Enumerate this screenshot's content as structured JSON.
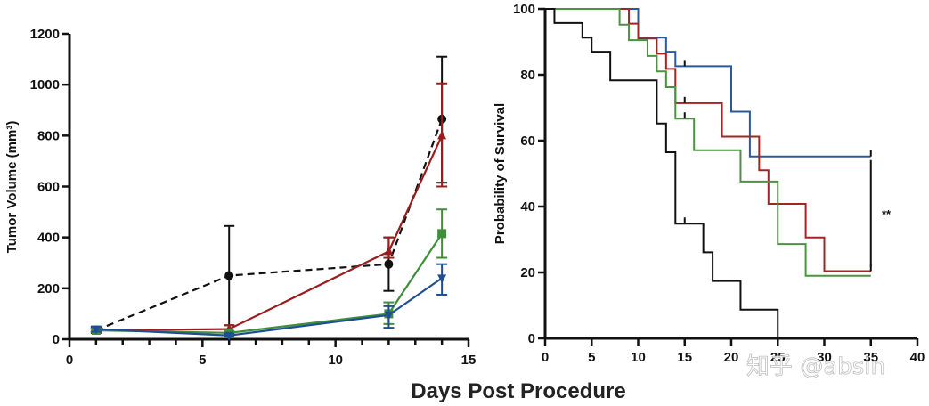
{
  "shared_xlabel": "Days Post Procedure",
  "watermark": "知乎 @absin",
  "chart_data": [
    {
      "type": "line",
      "title": "",
      "xlabel": "",
      "ylabel": "Tumor Volume (mm³)",
      "xlim": [
        0,
        15
      ],
      "ylim": [
        0,
        1200
      ],
      "xticks": [
        0,
        5,
        10,
        15
      ],
      "xminor_step": 1,
      "yticks": [
        0,
        200,
        400,
        600,
        800,
        1000,
        1200
      ],
      "grid": false,
      "legend": null,
      "x": [
        1,
        6,
        12,
        14
      ],
      "series": [
        {
          "name": "black",
          "color": "#111111",
          "dashed": true,
          "marker": "circle",
          "values": [
            35,
            250,
            295,
            865
          ],
          "err_low": [
            25,
            55,
            190,
            615
          ],
          "err_high": [
            45,
            445,
            400,
            1110
          ]
        },
        {
          "name": "red",
          "color": "#9b1c1c",
          "dashed": false,
          "marker": "triangle-up",
          "values": [
            35,
            40,
            345,
            800
          ],
          "err_low": [
            30,
            30,
            320,
            600
          ],
          "err_high": [
            40,
            55,
            400,
            1005
          ]
        },
        {
          "name": "green",
          "color": "#3f8f3a",
          "dashed": false,
          "marker": "square",
          "values": [
            35,
            25,
            100,
            415
          ],
          "err_low": [
            28,
            18,
            60,
            320
          ],
          "err_high": [
            42,
            32,
            145,
            510
          ]
        },
        {
          "name": "blue",
          "color": "#1f4f93",
          "dashed": false,
          "marker": "triangle-down",
          "values": [
            40,
            15,
            95,
            240
          ],
          "err_low": [
            30,
            10,
            45,
            175
          ],
          "err_high": [
            50,
            22,
            130,
            295
          ]
        }
      ]
    },
    {
      "type": "line",
      "subtype": "kaplan-meier",
      "title": "",
      "xlabel": "",
      "ylabel": "Probability of Survival",
      "xlim": [
        0,
        40
      ],
      "ylim": [
        0,
        100
      ],
      "xticks": [
        0,
        5,
        10,
        15,
        20,
        25,
        30,
        35,
        40
      ],
      "yticks": [
        0,
        20,
        40,
        60,
        80,
        100
      ],
      "grid": false,
      "legend": null,
      "annotation": {
        "text": "**",
        "between": [
          "blue",
          "red/green"
        ],
        "at_x": 35
      },
      "series": [
        {
          "name": "blue",
          "color": "#2a5a9e",
          "steps": [
            [
              0,
              100
            ],
            [
              10,
              91.3
            ],
            [
              13,
              87
            ],
            [
              14,
              82.6
            ],
            [
              20,
              68.8
            ],
            [
              22,
              55.2
            ],
            [
              35,
              55.2
            ]
          ],
          "censor": [
            [
              15,
              82.6
            ],
            [
              35,
              55.2
            ]
          ]
        },
        {
          "name": "red",
          "color": "#a32424",
          "steps": [
            [
              0,
              100
            ],
            [
              9,
              95.5
            ],
            [
              10,
              91
            ],
            [
              12,
              86.4
            ],
            [
              13,
              81.8
            ],
            [
              14,
              71.4
            ],
            [
              19,
              61.2
            ],
            [
              23,
              51
            ],
            [
              24,
              40.8
            ],
            [
              28,
              30.6
            ],
            [
              30,
              20.4
            ],
            [
              35,
              20.4
            ]
          ],
          "censor": [
            [
              15,
              71.4
            ],
            [
              35,
              20.4
            ]
          ]
        },
        {
          "name": "green",
          "color": "#4a9440",
          "steps": [
            [
              0,
              100
            ],
            [
              8,
              95.2
            ],
            [
              9,
              90.5
            ],
            [
              11,
              85.7
            ],
            [
              12,
              81
            ],
            [
              13,
              76.2
            ],
            [
              14,
              66.7
            ],
            [
              16,
              57.1
            ],
            [
              21,
              47.6
            ],
            [
              25,
              28.6
            ],
            [
              28,
              19
            ],
            [
              35,
              19
            ]
          ],
          "censor": [
            [
              15,
              66.7
            ]
          ]
        },
        {
          "name": "black",
          "color": "#111111",
          "steps": [
            [
              0,
              100
            ],
            [
              1,
              95.7
            ],
            [
              4,
              91.3
            ],
            [
              5,
              87
            ],
            [
              7,
              78.3
            ],
            [
              12,
              65.2
            ],
            [
              13,
              56.5
            ],
            [
              14,
              34.8
            ],
            [
              17,
              26.1
            ],
            [
              18,
              17.4
            ],
            [
              21,
              8.7
            ],
            [
              25,
              0
            ]
          ],
          "censor": [
            [
              15,
              34.8
            ]
          ]
        }
      ]
    }
  ]
}
